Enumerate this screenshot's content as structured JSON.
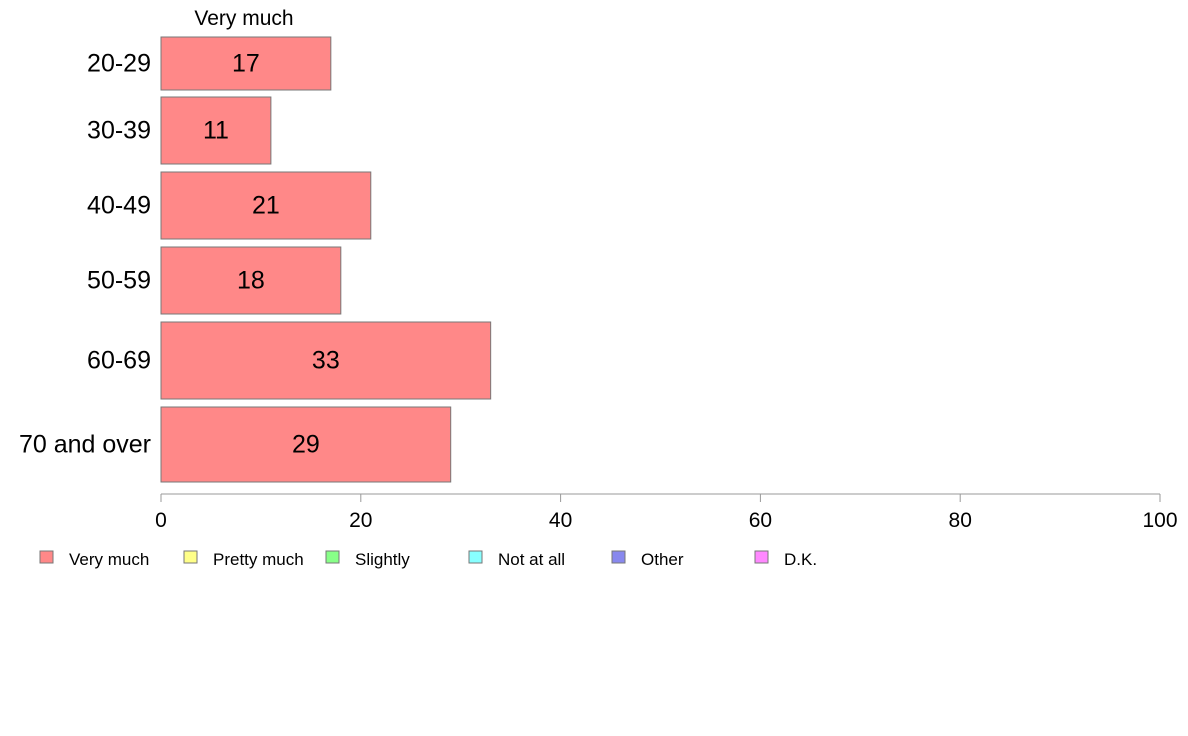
{
  "chart_data": {
    "type": "bar",
    "orientation": "horizontal",
    "stacked": true,
    "categories": [
      "20-29",
      "30-39",
      "40-49",
      "50-59",
      "60-69",
      "70 and over"
    ],
    "series": [
      {
        "name": "Very much",
        "values": [
          17,
          11,
          21,
          18,
          33,
          29
        ],
        "color": "#ff8888"
      },
      {
        "name": "Pretty much",
        "values": [
          0,
          0,
          0,
          0,
          0,
          0
        ],
        "color": "#ffff88"
      },
      {
        "name": "Slightly",
        "values": [
          0,
          0,
          0,
          0,
          0,
          0
        ],
        "color": "#88ff88"
      },
      {
        "name": "Not at all",
        "values": [
          0,
          0,
          0,
          0,
          0,
          0
        ],
        "color": "#88ffff"
      },
      {
        "name": "Other",
        "values": [
          0,
          0,
          0,
          0,
          0,
          0
        ],
        "color": "#8888ee"
      },
      {
        "name": "D.K.",
        "values": [
          0,
          0,
          0,
          0,
          0,
          0
        ],
        "color": "#ff88ff"
      }
    ],
    "data_labels": [
      "17",
      "11",
      "21",
      "18",
      "33",
      "29"
    ],
    "column_header": "Very much",
    "xlim": [
      0,
      100
    ],
    "xticks": [
      0,
      20,
      40,
      60,
      80,
      100
    ],
    "grid": false,
    "legend_position": "bottom",
    "bar_stroke": "#777777",
    "axis_color": "#999999"
  }
}
